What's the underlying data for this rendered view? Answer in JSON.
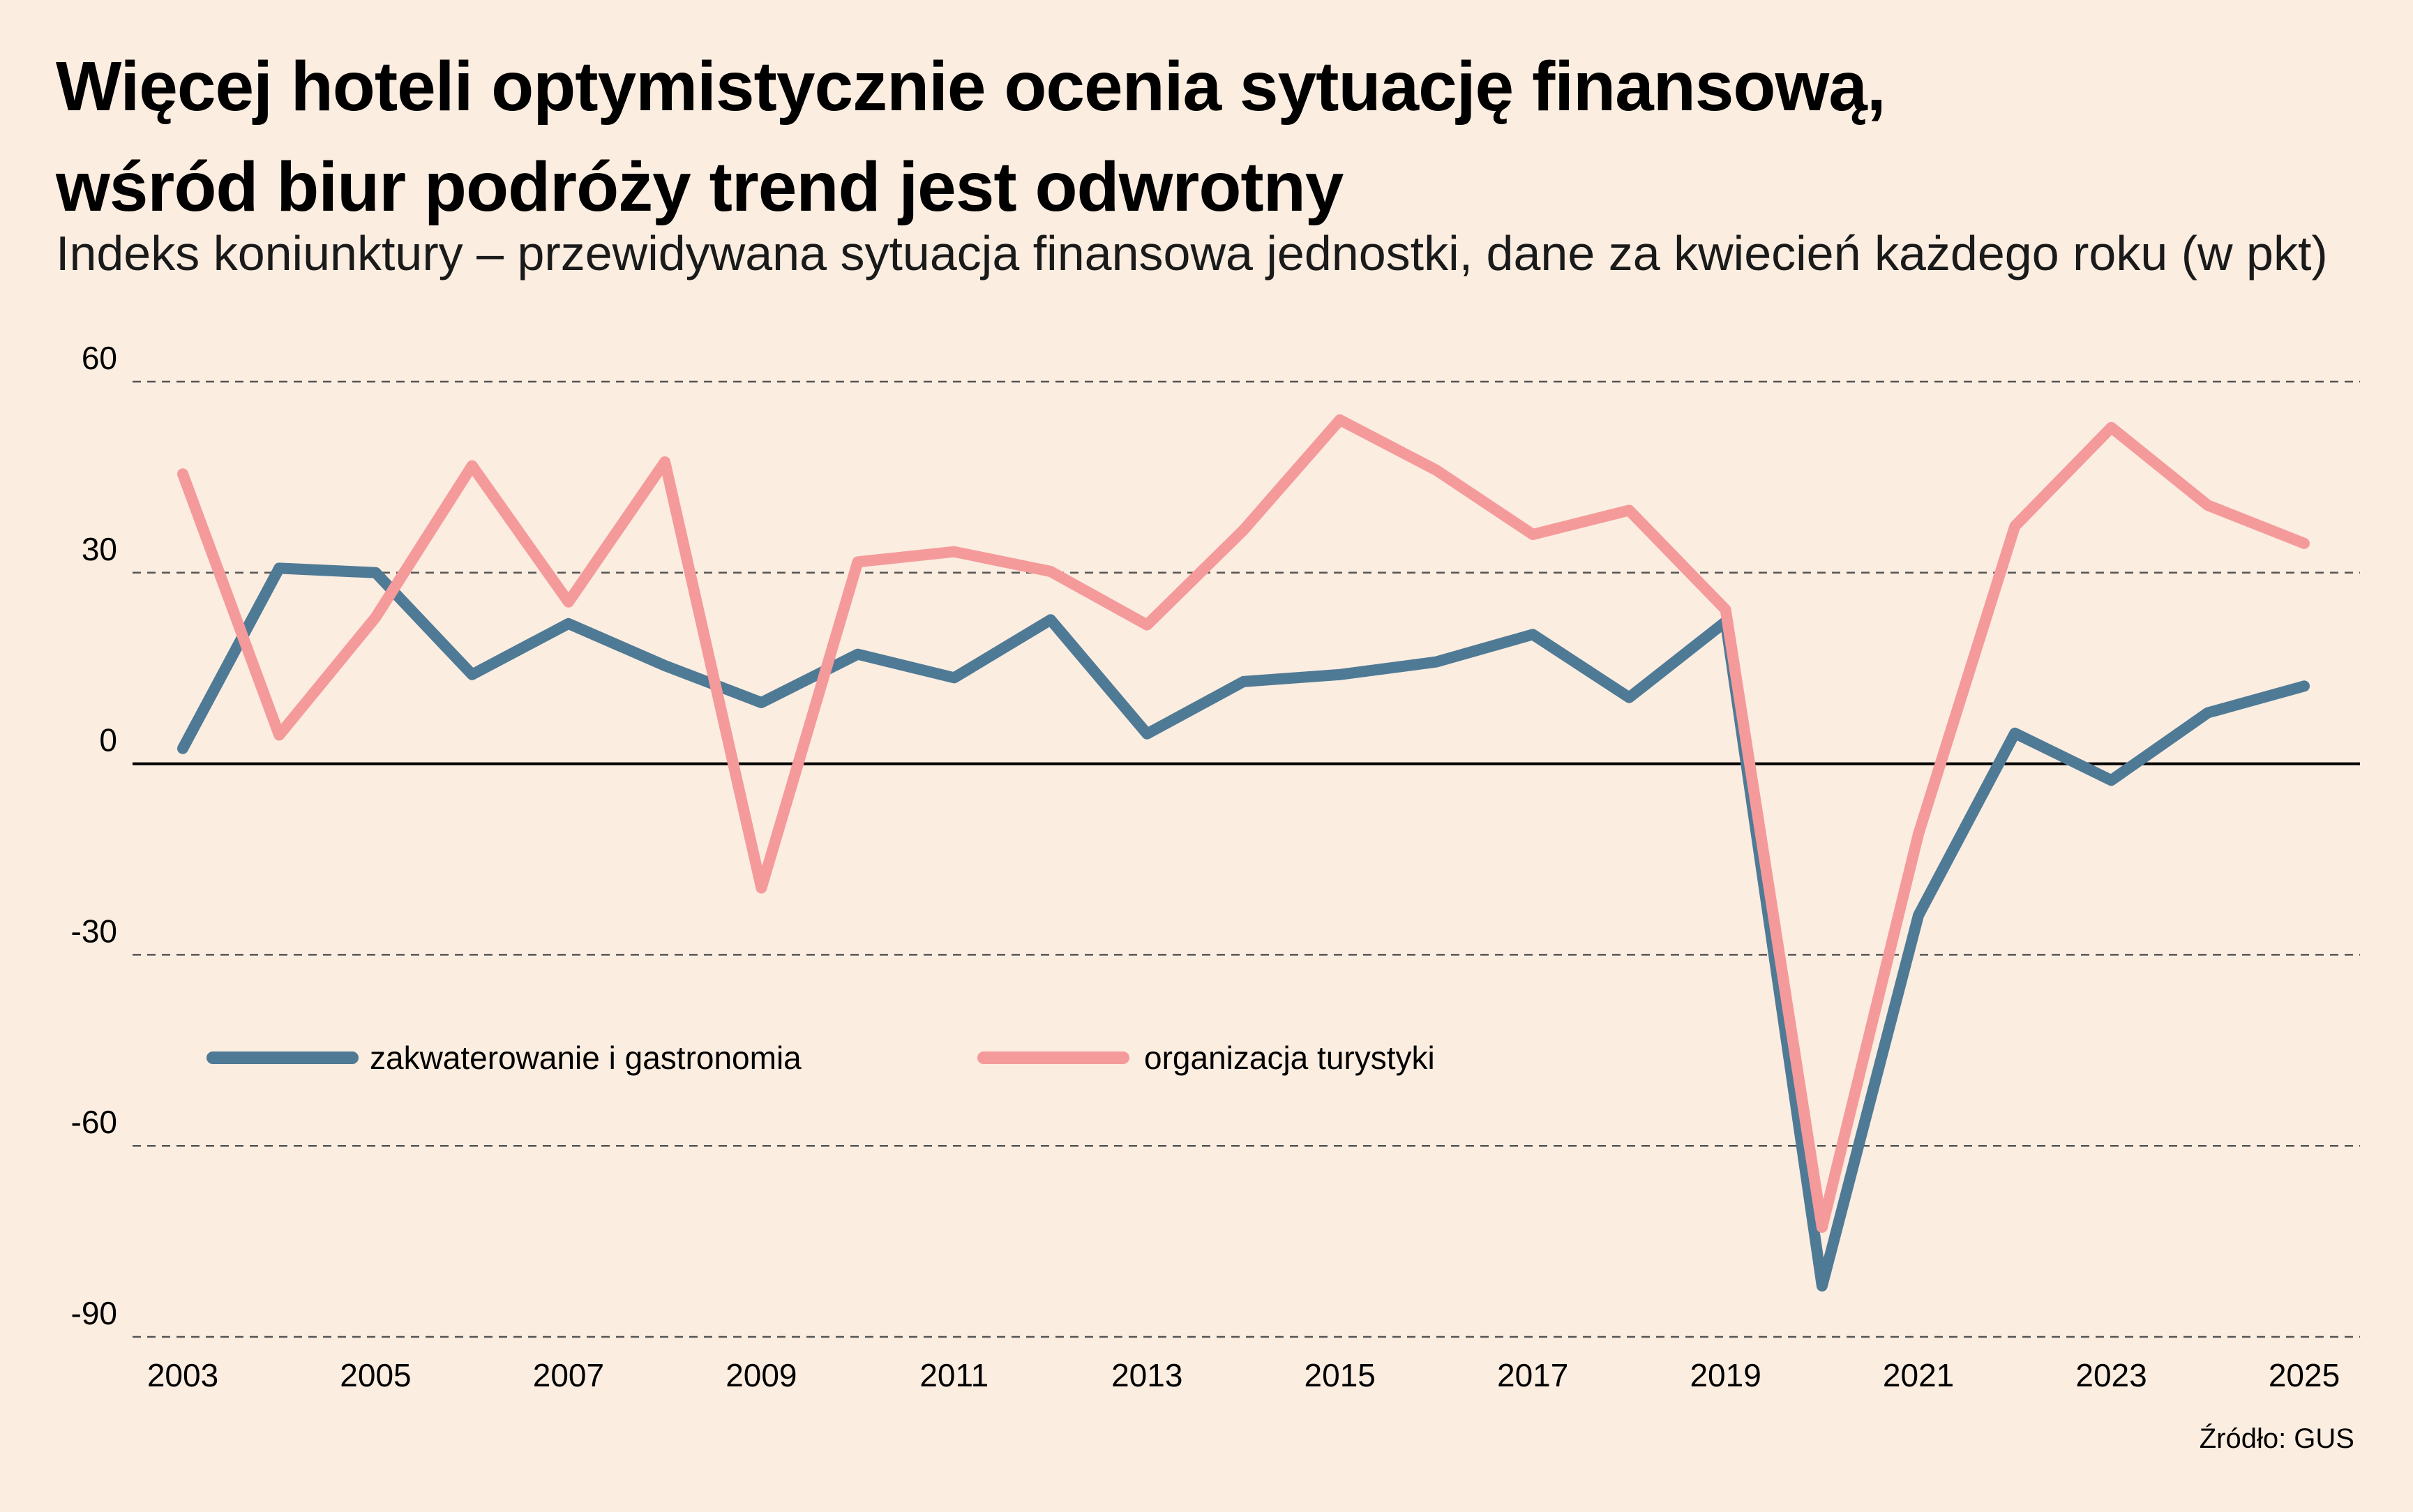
{
  "header": {
    "title_line1": "Więcej hoteli optymistycznie ocenia sytuację finansową,",
    "title_line2": "wśród biur podróży trend jest odwrotny",
    "subtitle": "Indeks koniunktury – przewidywana sytuacja finansowa jednostki, dane za kwiecień każdego roku (w pkt)"
  },
  "source": "Źródło: GUS",
  "colors": {
    "background": "#fbede0",
    "series_blue": "#4f7a96",
    "series_pink": "#f59a9b",
    "grid": "#555555",
    "zero_line": "#000000"
  },
  "chart_data": {
    "type": "line",
    "title": "",
    "xlabel": "",
    "ylabel": "",
    "x": [
      2003,
      2004,
      2005,
      2006,
      2007,
      2008,
      2009,
      2010,
      2011,
      2012,
      2013,
      2014,
      2015,
      2016,
      2017,
      2018,
      2019,
      2020,
      2021,
      2022,
      2023,
      2024,
      2025
    ],
    "x_tick_labels": [
      "2003",
      "2005",
      "2007",
      "2009",
      "2011",
      "2013",
      "2015",
      "2017",
      "2019",
      "2021",
      "2023",
      "2025"
    ],
    "y_ticks": [
      60,
      30,
      0,
      -30,
      -60,
      -90
    ],
    "y_tick_labels": [
      "60",
      "30",
      "0",
      "-30",
      "-60",
      "-90"
    ],
    "ylim": [
      -90,
      60
    ],
    "grid": "horizontal dashed",
    "legend_position": "lower-left inside plot",
    "series": [
      {
        "name": "zakwaterowanie i gastronomia",
        "color": "#4f7a96",
        "values": [
          2.4,
          30.7,
          30.0,
          14.0,
          22.0,
          15.4,
          9.6,
          17.2,
          13.5,
          22.6,
          4.7,
          12.9,
          14.0,
          16.0,
          20.3,
          10.4,
          22.3,
          -82.0,
          -23.8,
          4.8,
          -2.6,
          8.0,
          12.2
        ]
      },
      {
        "name": "organizacja turystyki",
        "color": "#f59a9b",
        "values": [
          45.5,
          4.5,
          23.0,
          46.8,
          25.4,
          47.4,
          -19.5,
          31.7,
          33.3,
          30.2,
          21.8,
          36.7,
          54.0,
          46.1,
          36.0,
          39.8,
          24.2,
          -72.8,
          -11.0,
          37.3,
          52.8,
          40.6,
          34.6
        ]
      }
    ]
  }
}
